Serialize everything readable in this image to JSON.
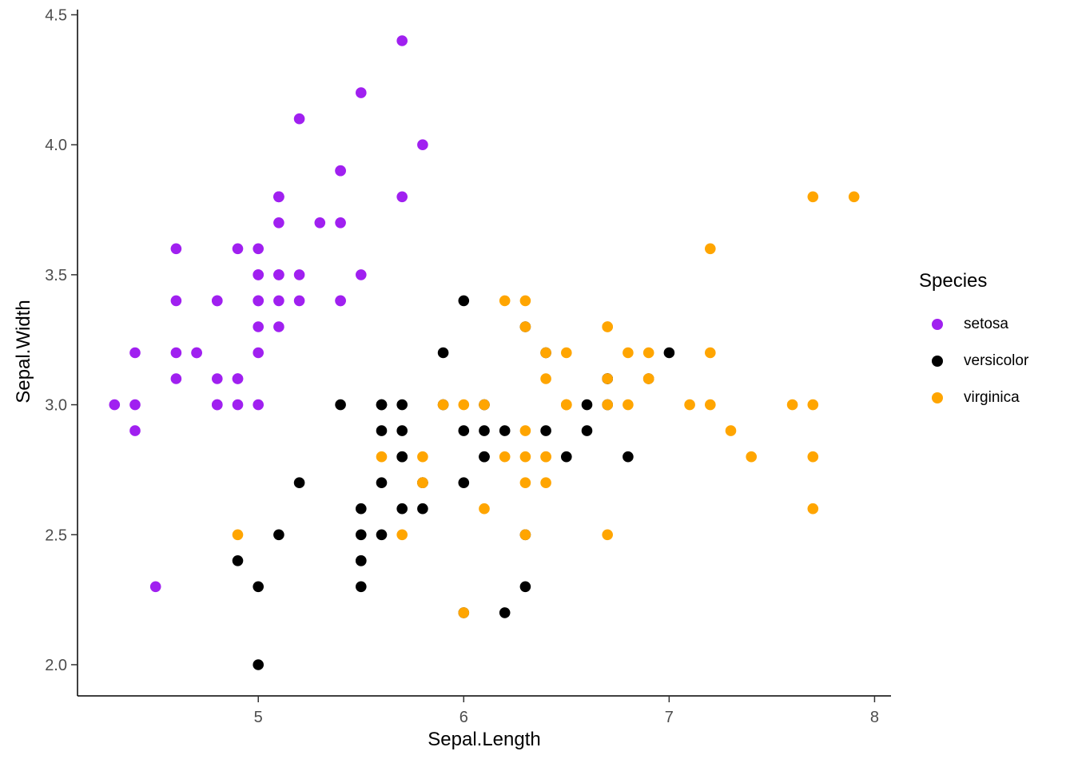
{
  "chart_data": {
    "type": "scatter",
    "title": "",
    "xlabel": "Sepal.Length",
    "ylabel": "Sepal.Width",
    "xlim": [
      4.12,
      8.08
    ],
    "ylim": [
      1.88,
      4.52
    ],
    "x_ticks": [
      5,
      6,
      7,
      8
    ],
    "x_tick_labels": [
      "5",
      "6",
      "7",
      "8"
    ],
    "y_ticks": [
      2.0,
      2.5,
      3.0,
      3.5,
      4.0,
      4.5
    ],
    "y_tick_labels": [
      "2.0",
      "2.5",
      "3.0",
      "3.5",
      "4.0",
      "4.5"
    ],
    "grid": false,
    "legend": {
      "title": "Species",
      "position": "right"
    },
    "series": [
      {
        "name": "setosa",
        "color": "#A020F0",
        "points": [
          [
            5.1,
            3.5
          ],
          [
            4.9,
            3.0
          ],
          [
            4.7,
            3.2
          ],
          [
            4.6,
            3.1
          ],
          [
            5.0,
            3.6
          ],
          [
            5.4,
            3.9
          ],
          [
            4.6,
            3.4
          ],
          [
            5.0,
            3.4
          ],
          [
            4.4,
            2.9
          ],
          [
            4.9,
            3.1
          ],
          [
            5.4,
            3.7
          ],
          [
            4.8,
            3.4
          ],
          [
            4.8,
            3.0
          ],
          [
            4.3,
            3.0
          ],
          [
            5.8,
            4.0
          ],
          [
            5.7,
            4.4
          ],
          [
            5.4,
            3.9
          ],
          [
            5.1,
            3.5
          ],
          [
            5.7,
            3.8
          ],
          [
            5.1,
            3.8
          ],
          [
            5.4,
            3.4
          ],
          [
            5.1,
            3.7
          ],
          [
            4.6,
            3.6
          ],
          [
            5.1,
            3.3
          ],
          [
            4.8,
            3.4
          ],
          [
            5.0,
            3.0
          ],
          [
            5.0,
            3.4
          ],
          [
            5.2,
            3.5
          ],
          [
            5.2,
            3.4
          ],
          [
            4.7,
            3.2
          ],
          [
            4.8,
            3.1
          ],
          [
            5.4,
            3.4
          ],
          [
            5.2,
            4.1
          ],
          [
            5.5,
            4.2
          ],
          [
            4.9,
            3.1
          ],
          [
            5.0,
            3.2
          ],
          [
            5.5,
            3.5
          ],
          [
            4.9,
            3.6
          ],
          [
            4.4,
            3.0
          ],
          [
            5.1,
            3.4
          ],
          [
            5.0,
            3.5
          ],
          [
            4.5,
            2.3
          ],
          [
            4.4,
            3.2
          ],
          [
            5.0,
            3.5
          ],
          [
            5.1,
            3.8
          ],
          [
            4.8,
            3.0
          ],
          [
            5.1,
            3.8
          ],
          [
            4.6,
            3.2
          ],
          [
            5.3,
            3.7
          ],
          [
            5.0,
            3.3
          ]
        ]
      },
      {
        "name": "versicolor",
        "color": "#000000",
        "points": [
          [
            7.0,
            3.2
          ],
          [
            6.4,
            3.2
          ],
          [
            6.9,
            3.1
          ],
          [
            5.5,
            2.3
          ],
          [
            6.5,
            2.8
          ],
          [
            5.7,
            2.8
          ],
          [
            6.3,
            3.3
          ],
          [
            4.9,
            2.4
          ],
          [
            6.6,
            2.9
          ],
          [
            5.2,
            2.7
          ],
          [
            5.0,
            2.0
          ],
          [
            5.9,
            3.0
          ],
          [
            6.0,
            2.2
          ],
          [
            6.1,
            2.9
          ],
          [
            5.6,
            2.9
          ],
          [
            6.7,
            3.1
          ],
          [
            5.6,
            3.0
          ],
          [
            5.8,
            2.7
          ],
          [
            6.2,
            2.2
          ],
          [
            5.6,
            2.5
          ],
          [
            5.9,
            3.2
          ],
          [
            6.1,
            2.8
          ],
          [
            6.3,
            2.5
          ],
          [
            6.1,
            2.8
          ],
          [
            6.4,
            2.9
          ],
          [
            6.6,
            3.0
          ],
          [
            6.8,
            2.8
          ],
          [
            6.7,
            3.0
          ],
          [
            6.0,
            2.9
          ],
          [
            5.7,
            2.6
          ],
          [
            5.5,
            2.4
          ],
          [
            5.5,
            2.4
          ],
          [
            5.8,
            2.7
          ],
          [
            6.0,
            2.7
          ],
          [
            5.4,
            3.0
          ],
          [
            6.0,
            3.4
          ],
          [
            6.7,
            3.1
          ],
          [
            6.3,
            2.3
          ],
          [
            5.6,
            3.0
          ],
          [
            5.5,
            2.5
          ],
          [
            5.5,
            2.6
          ],
          [
            6.1,
            3.0
          ],
          [
            5.8,
            2.6
          ],
          [
            5.0,
            2.3
          ],
          [
            5.6,
            2.7
          ],
          [
            5.7,
            3.0
          ],
          [
            5.7,
            2.9
          ],
          [
            6.2,
            2.9
          ],
          [
            5.1,
            2.5
          ],
          [
            5.7,
            2.8
          ]
        ]
      },
      {
        "name": "virginica",
        "color": "#FFA500",
        "points": [
          [
            6.3,
            3.3
          ],
          [
            5.8,
            2.7
          ],
          [
            7.1,
            3.0
          ],
          [
            6.3,
            2.9
          ],
          [
            6.5,
            3.0
          ],
          [
            7.6,
            3.0
          ],
          [
            4.9,
            2.5
          ],
          [
            7.3,
            2.9
          ],
          [
            6.7,
            2.5
          ],
          [
            7.2,
            3.6
          ],
          [
            6.5,
            3.2
          ],
          [
            6.4,
            2.7
          ],
          [
            6.8,
            3.0
          ],
          [
            5.7,
            2.5
          ],
          [
            5.8,
            2.8
          ],
          [
            6.4,
            3.2
          ],
          [
            6.5,
            3.0
          ],
          [
            7.7,
            3.8
          ],
          [
            7.7,
            2.6
          ],
          [
            6.0,
            2.2
          ],
          [
            6.9,
            3.2
          ],
          [
            5.6,
            2.8
          ],
          [
            7.7,
            2.8
          ],
          [
            6.3,
            2.7
          ],
          [
            6.7,
            3.3
          ],
          [
            7.2,
            3.2
          ],
          [
            6.2,
            2.8
          ],
          [
            6.1,
            3.0
          ],
          [
            6.4,
            2.8
          ],
          [
            7.2,
            3.0
          ],
          [
            7.4,
            2.8
          ],
          [
            7.9,
            3.8
          ],
          [
            6.4,
            2.8
          ],
          [
            6.3,
            2.8
          ],
          [
            6.1,
            2.6
          ],
          [
            7.7,
            3.0
          ],
          [
            6.3,
            3.4
          ],
          [
            6.4,
            3.1
          ],
          [
            6.0,
            3.0
          ],
          [
            6.9,
            3.1
          ],
          [
            6.7,
            3.1
          ],
          [
            6.9,
            3.1
          ],
          [
            5.8,
            2.7
          ],
          [
            6.8,
            3.2
          ],
          [
            6.7,
            3.3
          ],
          [
            6.7,
            3.0
          ],
          [
            6.3,
            2.5
          ],
          [
            6.5,
            3.0
          ],
          [
            6.2,
            3.4
          ],
          [
            5.9,
            3.0
          ]
        ]
      }
    ]
  }
}
